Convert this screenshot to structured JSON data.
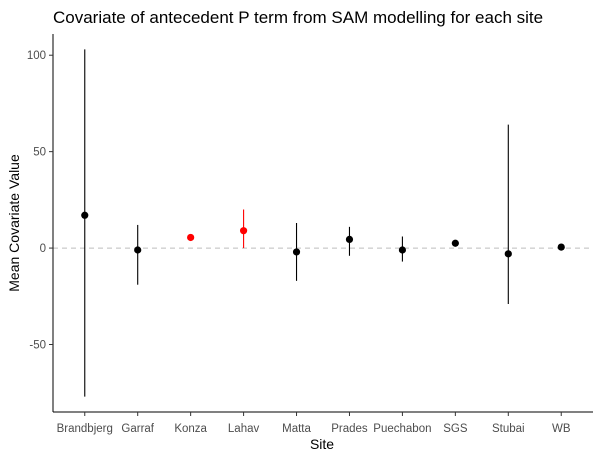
{
  "chart_data": {
    "type": "scatter",
    "title": "Covariate of antecedent P term from SAM modelling for each site",
    "xlabel": "Site",
    "ylabel": "Mean Covariate Value",
    "categories": [
      "Brandbjerg",
      "Garraf",
      "Konza",
      "Lahav",
      "Matta",
      "Prades",
      "Puechabon",
      "SGS",
      "Stubai",
      "WB"
    ],
    "ylim": [
      -85,
      111
    ],
    "yticks": [
      -50,
      0,
      50,
      100
    ],
    "ytick_labels": [
      "-50",
      "0",
      "50",
      "100"
    ],
    "grid": false,
    "reference_line": {
      "y": 0,
      "style": "dashed",
      "color": "#bdbdbd"
    },
    "points": [
      {
        "site": "Brandbjerg",
        "mean": 17,
        "lower": -77,
        "upper": 103,
        "color": "#000000"
      },
      {
        "site": "Garraf",
        "mean": -1,
        "lower": -19,
        "upper": 12,
        "color": "#000000"
      },
      {
        "site": "Konza",
        "mean": 5.5,
        "lower": 5,
        "upper": 6,
        "color": "#ff0000"
      },
      {
        "site": "Lahav",
        "mean": 9,
        "lower": 0,
        "upper": 20,
        "color": "#ff0000"
      },
      {
        "site": "Matta",
        "mean": -2,
        "lower": -17,
        "upper": 13,
        "color": "#000000"
      },
      {
        "site": "Prades",
        "mean": 4.5,
        "lower": -4,
        "upper": 11,
        "color": "#000000"
      },
      {
        "site": "Puechabon",
        "mean": -1,
        "lower": -7,
        "upper": 6,
        "color": "#000000"
      },
      {
        "site": "SGS",
        "mean": 2.5,
        "lower": 1,
        "upper": 4,
        "color": "#000000"
      },
      {
        "site": "Stubai",
        "mean": -3,
        "lower": -29,
        "upper": 64,
        "color": "#000000"
      },
      {
        "site": "WB",
        "mean": 0.5,
        "lower": 0,
        "upper": 1,
        "color": "#000000"
      }
    ]
  }
}
